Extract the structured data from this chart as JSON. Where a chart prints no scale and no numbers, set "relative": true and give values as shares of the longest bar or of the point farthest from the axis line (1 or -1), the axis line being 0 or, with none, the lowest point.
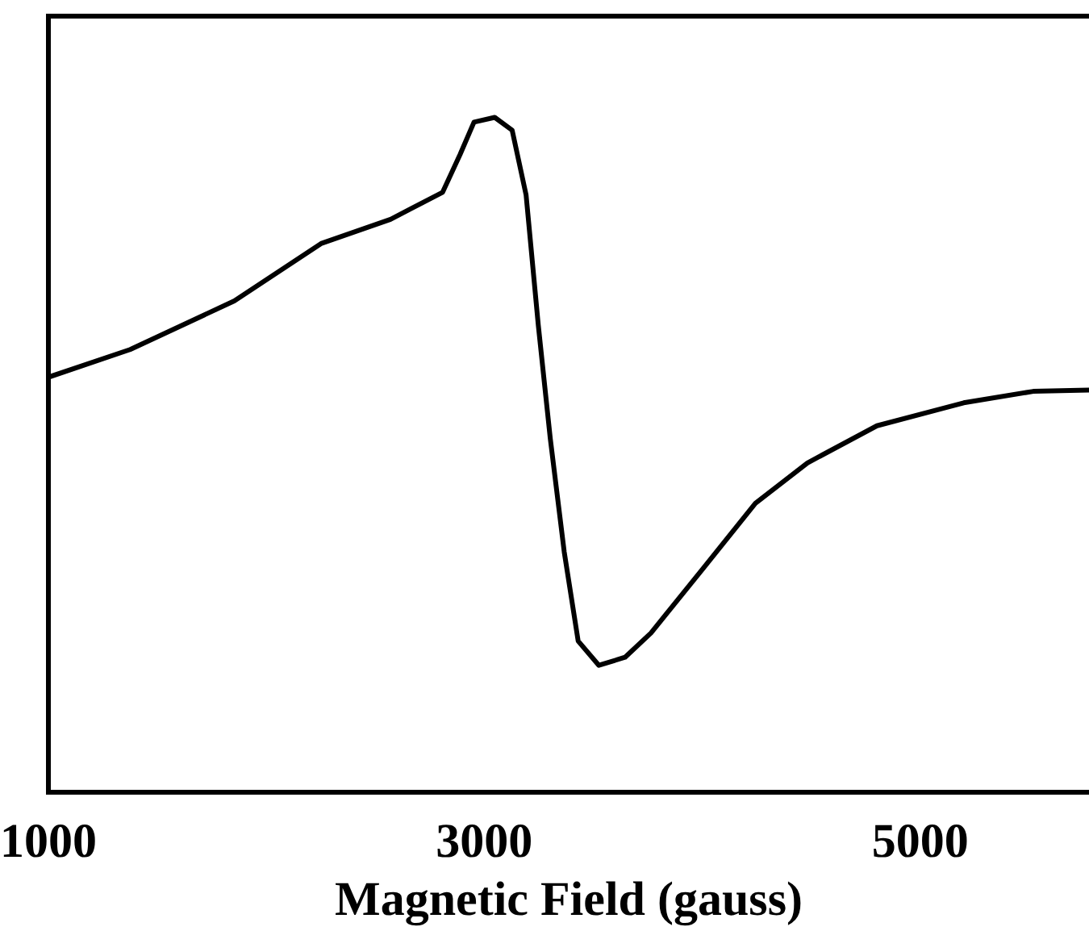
{
  "chart_data": {
    "type": "line",
    "xlabel": "Magnetic Field (gauss)",
    "relative": true,
    "x": [
      1000,
      1375,
      1853,
      2251,
      2570,
      2809,
      2889,
      2953,
      3048,
      3128,
      3192,
      3248,
      3303,
      3367,
      3431,
      3526,
      3646,
      3765,
      4005,
      4244,
      4483,
      4802,
      5200,
      5519,
      5774
    ],
    "series": [
      {
        "color": "#000000",
        "values": [
          0.615,
          0.656,
          0.728,
          0.813,
          0.849,
          0.889,
          0.945,
          0.993,
          1,
          0.981,
          0.885,
          0.692,
          0.524,
          0.356,
          0.224,
          0.188,
          0.2,
          0.236,
          0.332,
          0.428,
          0.488,
          0.543,
          0.577,
          0.594,
          0.596
        ]
      }
    ],
    "xlim": [
      1000,
      5775
    ],
    "xticks": [
      1000,
      3000,
      5000
    ]
  }
}
